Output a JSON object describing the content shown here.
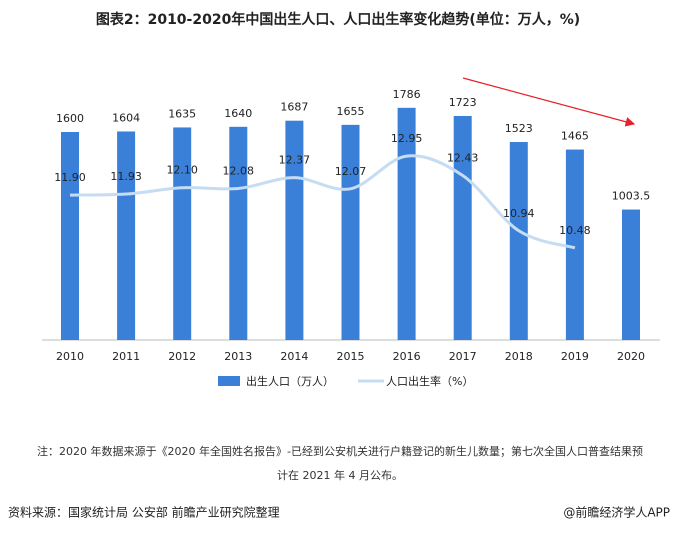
{
  "chart_data": {
    "type": "bar",
    "title": "图表2：2010-2020年中国出生人口、人口出生率变化趋势(单位：万人，%)",
    "categories": [
      "2010",
      "2011",
      "2012",
      "2013",
      "2014",
      "2015",
      "2016",
      "2017",
      "2018",
      "2019",
      "2020"
    ],
    "series": [
      {
        "name": "出生人口（万人）",
        "type": "bar",
        "color": "#3b80d8",
        "values": [
          1600,
          1604,
          1635,
          1640,
          1687,
          1655,
          1786,
          1723,
          1523,
          1465,
          1003.5
        ]
      },
      {
        "name": "人口出生率（%）",
        "type": "line",
        "axis": "y2",
        "color": "#c5dcf2",
        "values": [
          11.9,
          11.93,
          12.1,
          12.08,
          12.37,
          12.07,
          12.95,
          12.43,
          10.94,
          10.48,
          null
        ],
        "value_labels": [
          "11.90",
          "11.93",
          "12.10",
          "12.08",
          "12.37",
          "12.07",
          "12.95",
          "12.43",
          "10.94",
          "10.48",
          null
        ]
      }
    ],
    "ylim": [
      0,
      1800
    ],
    "y2lim": [
      8,
      14.3
    ],
    "legend": "bottom",
    "note": [
      "注：2020 年数据来源于《2020 年全国姓名报告》-已经到公安机关进行户籍登记的新生儿数量；第七次全国人口普查结果预",
      "计在 2021 年 4 月公布。"
    ],
    "source": "资料来源：国家统计局 公安部 前瞻产业研究院整理",
    "footer": "@前瞻经济学人APP"
  }
}
